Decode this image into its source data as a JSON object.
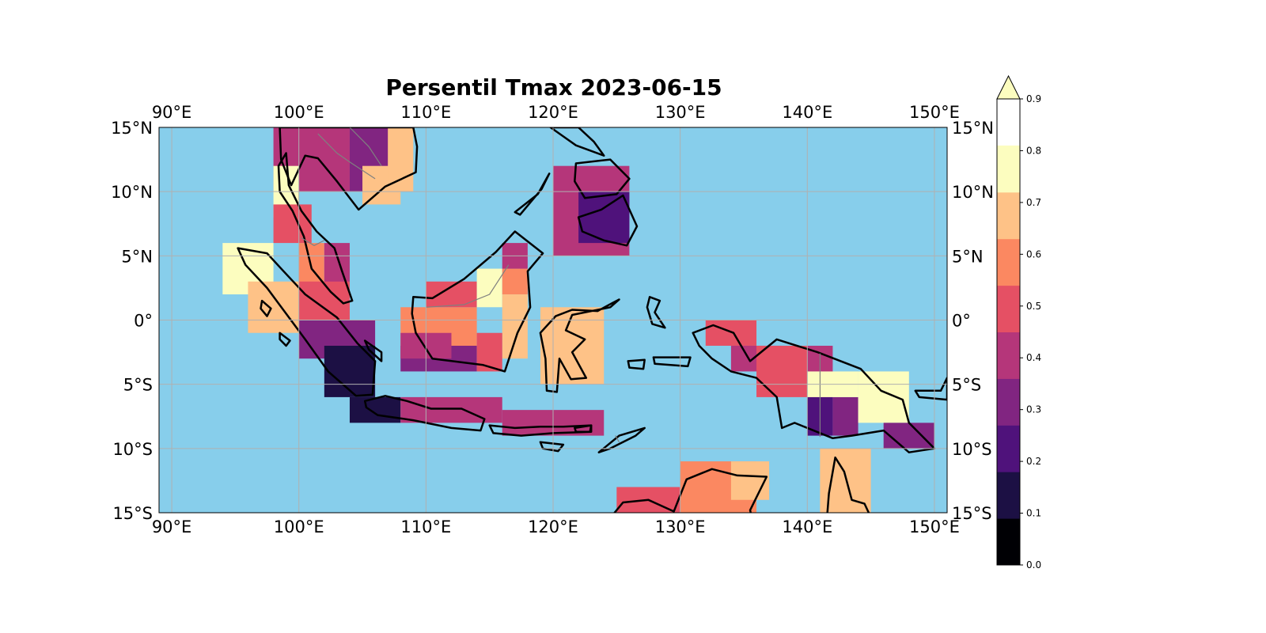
{
  "title": "Persentil Tmax 2023-06-15",
  "map": {
    "extent": {
      "lon_min": 89,
      "lon_max": 151,
      "lat_min": -15,
      "lat_max": 15
    },
    "ocean_color": "#87ceeb",
    "gridlines": true,
    "coastline_color": "#000000",
    "border_color": "#808080",
    "lon_ticks": [
      {
        "value": 90,
        "label": "90°E"
      },
      {
        "value": 100,
        "label": "100°E"
      },
      {
        "value": 110,
        "label": "110°E"
      },
      {
        "value": 120,
        "label": "120°E"
      },
      {
        "value": 130,
        "label": "130°E"
      },
      {
        "value": 140,
        "label": "140°E"
      },
      {
        "value": 150,
        "label": "150°E"
      }
    ],
    "lat_ticks": [
      {
        "value": 15,
        "label": "15°N"
      },
      {
        "value": 10,
        "label": "10°N"
      },
      {
        "value": 5,
        "label": "5°N"
      },
      {
        "value": 0,
        "label": "0°"
      },
      {
        "value": -5,
        "label": "5°S"
      },
      {
        "value": -10,
        "label": "10°S"
      },
      {
        "value": -15,
        "label": "15°S"
      }
    ]
  },
  "colorbar": {
    "colormap": "magma",
    "levels": [
      "0.0",
      "0.1",
      "0.2",
      "0.3",
      "0.4",
      "0.5",
      "0.6",
      "0.7",
      "0.8",
      "0.9"
    ],
    "colors": [
      "#000004",
      "#1c1044",
      "#4f127b",
      "#812581",
      "#b5367a",
      "#e55064",
      "#fb8861",
      "#fec287",
      "#fcfdbf"
    ],
    "extend": "max",
    "extend_color": "#fcfdbf"
  },
  "chart_data": {
    "type": "heatmap",
    "title": "Persentil Tmax 2023-06-15",
    "value_range": [
      0,
      1
    ],
    "grid_cells": [
      {
        "lon": [
          98,
          104
        ],
        "lat": [
          10,
          15
        ],
        "value": 0.45
      },
      {
        "lon": [
          104,
          108
        ],
        "lat": [
          10,
          15
        ],
        "value": 0.35
      },
      {
        "lon": [
          105,
          108
        ],
        "lat": [
          9,
          12
        ],
        "value": 0.75
      },
      {
        "lon": [
          107,
          109
        ],
        "lat": [
          10,
          15
        ],
        "value": 0.75
      },
      {
        "lon": [
          98,
          100
        ],
        "lat": [
          8,
          12
        ],
        "value": 0.85
      },
      {
        "lon": [
          98,
          101
        ],
        "lat": [
          6,
          9
        ],
        "value": 0.55
      },
      {
        "lon": [
          100,
          102
        ],
        "lat": [
          2,
          6
        ],
        "value": 0.65
      },
      {
        "lon": [
          102,
          104
        ],
        "lat": [
          2,
          6
        ],
        "value": 0.45
      },
      {
        "lon": [
          94,
          98
        ],
        "lat": [
          2,
          6
        ],
        "value": 0.95
      },
      {
        "lon": [
          96,
          100
        ],
        "lat": [
          -1,
          3
        ],
        "value": 0.75
      },
      {
        "lon": [
          100,
          104
        ],
        "lat": [
          -1,
          3
        ],
        "value": 0.55
      },
      {
        "lon": [
          100,
          106
        ],
        "lat": [
          -3,
          0
        ],
        "value": 0.35
      },
      {
        "lon": [
          102,
          106
        ],
        "lat": [
          -6,
          -2
        ],
        "value": 0.15
      },
      {
        "lon": [
          104,
          108
        ],
        "lat": [
          -8,
          -6
        ],
        "value": 0.15
      },
      {
        "lon": [
          108,
          116
        ],
        "lat": [
          -8,
          -6
        ],
        "value": 0.45
      },
      {
        "lon": [
          116,
          124
        ],
        "lat": [
          -9,
          -7
        ],
        "value": 0.45
      },
      {
        "lon": [
          108,
          114
        ],
        "lat": [
          -3,
          1
        ],
        "value": 0.65
      },
      {
        "lon": [
          110,
          114
        ],
        "lat": [
          1,
          3
        ],
        "value": 0.55
      },
      {
        "lon": [
          114,
          116
        ],
        "lat": [
          1,
          4
        ],
        "value": 0.85
      },
      {
        "lon": [
          116,
          118
        ],
        "lat": [
          2,
          4
        ],
        "value": 0.65
      },
      {
        "lon": [
          116,
          118
        ],
        "lat": [
          -3,
          2
        ],
        "value": 0.75
      },
      {
        "lon": [
          116,
          118
        ],
        "lat": [
          4,
          6
        ],
        "value": 0.45
      },
      {
        "lon": [
          108,
          114
        ],
        "lat": [
          -4,
          -2
        ],
        "value": 0.35
      },
      {
        "lon": [
          114,
          116
        ],
        "lat": [
          -4,
          -1
        ],
        "value": 0.55
      },
      {
        "lon": [
          108,
          112
        ],
        "lat": [
          -3,
          -1
        ],
        "value": 0.45
      },
      {
        "lon": [
          119,
          124
        ],
        "lat": [
          -5,
          1
        ],
        "value": 0.75
      },
      {
        "lon": [
          120,
          126
        ],
        "lat": [
          5,
          12
        ],
        "value": 0.45
      },
      {
        "lon": [
          122,
          126
        ],
        "lat": [
          6,
          10
        ],
        "value": 0.25
      },
      {
        "lon": [
          132,
          136
        ],
        "lat": [
          -2,
          0
        ],
        "value": 0.55
      },
      {
        "lon": [
          134,
          138
        ],
        "lat": [
          -4,
          -2
        ],
        "value": 0.45
      },
      {
        "lon": [
          136,
          140
        ],
        "lat": [
          -6,
          -2
        ],
        "value": 0.55
      },
      {
        "lon": [
          140,
          142
        ],
        "lat": [
          -6,
          -2
        ],
        "value": 0.45
      },
      {
        "lon": [
          140,
          142
        ],
        "lat": [
          -9,
          -6
        ],
        "value": 0.25
      },
      {
        "lon": [
          142,
          144
        ],
        "lat": [
          -9,
          -6
        ],
        "value": 0.35
      },
      {
        "lon": [
          140,
          144
        ],
        "lat": [
          -6,
          -4
        ],
        "value": 0.85
      },
      {
        "lon": [
          144,
          148
        ],
        "lat": [
          -8,
          -4
        ],
        "value": 0.95
      },
      {
        "lon": [
          146,
          150
        ],
        "lat": [
          -10,
          -8
        ],
        "value": 0.35
      },
      {
        "lon": [
          125,
          130
        ],
        "lat": [
          -15,
          -13
        ],
        "value": 0.55
      },
      {
        "lon": [
          130,
          136
        ],
        "lat": [
          -15,
          -11
        ],
        "value": 0.65
      },
      {
        "lon": [
          134,
          137
        ],
        "lat": [
          -14,
          -11
        ],
        "value": 0.75
      },
      {
        "lon": [
          141,
          145
        ],
        "lat": [
          -15,
          -10
        ],
        "value": 0.75
      }
    ]
  }
}
